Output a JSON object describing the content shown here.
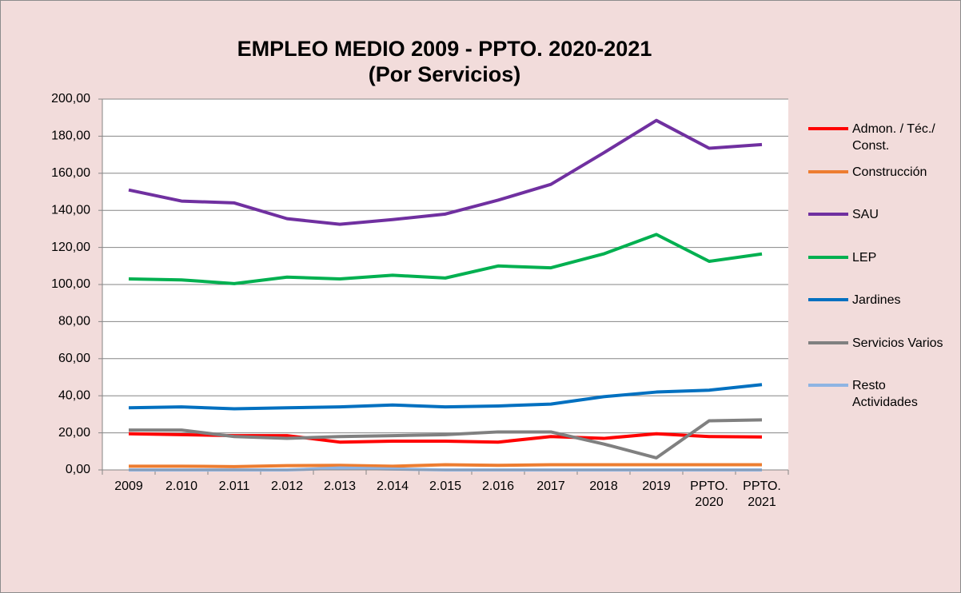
{
  "chart_data": {
    "type": "line",
    "title": "EMPLEO MEDIO 2009 - PPTO. 2020-2021",
    "subtitle": "(Por Servicios)",
    "categories": [
      "2009",
      "2.010",
      "2.011",
      "2.012",
      "2.013",
      "2.014",
      "2.015",
      "2.016",
      "2017",
      "2018",
      "2019",
      "PPTO. 2020",
      "PPTO. 2021"
    ],
    "series": [
      {
        "name": "Admon. / Téc./ Const.",
        "color": "#ff0000",
        "values": [
          19.5,
          19,
          18.5,
          18.5,
          15,
          15.5,
          15.5,
          15,
          18,
          17,
          19.5,
          18,
          17.8
        ]
      },
      {
        "name": "Construcción",
        "color": "#ed7d31",
        "values": [
          2,
          2,
          1.8,
          2.3,
          2.5,
          2,
          2.8,
          2.5,
          2.8,
          2.8,
          2.8,
          2.8,
          2.8
        ]
      },
      {
        "name": "SAU",
        "color": "#7030a0",
        "values": [
          151,
          145,
          144,
          135.5,
          132.5,
          135,
          138,
          145.5,
          154,
          171,
          188.5,
          173.5,
          175.5
        ]
      },
      {
        "name": "LEP",
        "color": "#00b050",
        "values": [
          103,
          102.5,
          100.5,
          104,
          103,
          105,
          103.5,
          110,
          109,
          116.5,
          127,
          112.5,
          116.5
        ]
      },
      {
        "name": "Jardines",
        "color": "#0070c0",
        "values": [
          33.5,
          34,
          33,
          33.5,
          34,
          35,
          34,
          34.5,
          35.5,
          39.5,
          42,
          43,
          46
        ]
      },
      {
        "name": "Servicios Varios",
        "color": "#808080",
        "values": [
          21.5,
          21.5,
          18,
          17,
          18,
          18.5,
          19,
          20.5,
          20.5,
          14,
          6.5,
          26.5,
          27
        ]
      },
      {
        "name": "Resto Actividades",
        "color": "#8eb4e3",
        "values": [
          0,
          0,
          0,
          0,
          1,
          0.5,
          0,
          0,
          0,
          0,
          0,
          0,
          0
        ]
      }
    ],
    "ylim": [
      0,
      200
    ],
    "yticks": [
      {
        "value": 0,
        "label": "0,00"
      },
      {
        "value": 20,
        "label": "20,00"
      },
      {
        "value": 40,
        "label": "40,00"
      },
      {
        "value": 60,
        "label": "60,00"
      },
      {
        "value": 80,
        "label": "80,00"
      },
      {
        "value": 100,
        "label": "100,00"
      },
      {
        "value": 120,
        "label": "120,00"
      },
      {
        "value": 140,
        "label": "140,00"
      },
      {
        "value": 160,
        "label": "160,00"
      },
      {
        "value": 180,
        "label": "180,00"
      },
      {
        "value": 200,
        "label": "200,00"
      }
    ],
    "grid": true,
    "legend": "right"
  }
}
